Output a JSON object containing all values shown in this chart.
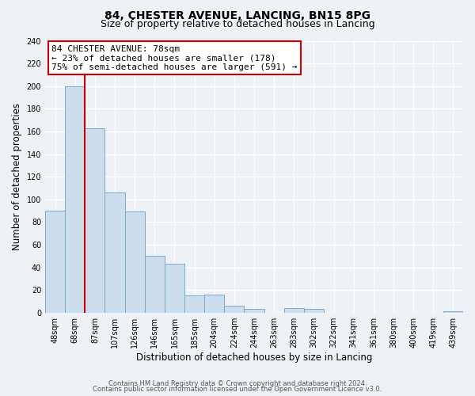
{
  "title": "84, CHESTER AVENUE, LANCING, BN15 8PG",
  "subtitle": "Size of property relative to detached houses in Lancing",
  "xlabel": "Distribution of detached houses by size in Lancing",
  "ylabel": "Number of detached properties",
  "bin_labels": [
    "48sqm",
    "68sqm",
    "87sqm",
    "107sqm",
    "126sqm",
    "146sqm",
    "165sqm",
    "185sqm",
    "204sqm",
    "224sqm",
    "244sqm",
    "263sqm",
    "283sqm",
    "302sqm",
    "322sqm",
    "341sqm",
    "361sqm",
    "380sqm",
    "400sqm",
    "419sqm",
    "439sqm"
  ],
  "bar_heights": [
    90,
    200,
    163,
    106,
    89,
    50,
    43,
    15,
    16,
    6,
    3,
    0,
    4,
    3,
    0,
    0,
    0,
    0,
    0,
    0,
    1
  ],
  "bar_color": "#ccdded",
  "bar_edge_color": "#7aaac8",
  "vline_color": "#cc0000",
  "vline_x_idx": 1,
  "annotation_line0": "84 CHESTER AVENUE: 78sqm",
  "annotation_line1": "← 23% of detached houses are smaller (178)",
  "annotation_line2": "75% of semi-detached houses are larger (591) →",
  "annotation_box_color": "#ffffff",
  "annotation_box_edge": "#cc0000",
  "ylim": [
    0,
    240
  ],
  "yticks": [
    0,
    20,
    40,
    60,
    80,
    100,
    120,
    140,
    160,
    180,
    200,
    220,
    240
  ],
  "footer1": "Contains HM Land Registry data © Crown copyright and database right 2024.",
  "footer2": "Contains public sector information licensed under the Open Government Licence v3.0.",
  "bg_color": "#eef2f7",
  "grid_color": "#ffffff",
  "title_fontsize": 10,
  "subtitle_fontsize": 9,
  "axis_label_fontsize": 8.5,
  "tick_fontsize": 7,
  "annotation_fontsize": 8,
  "footer_fontsize": 6
}
